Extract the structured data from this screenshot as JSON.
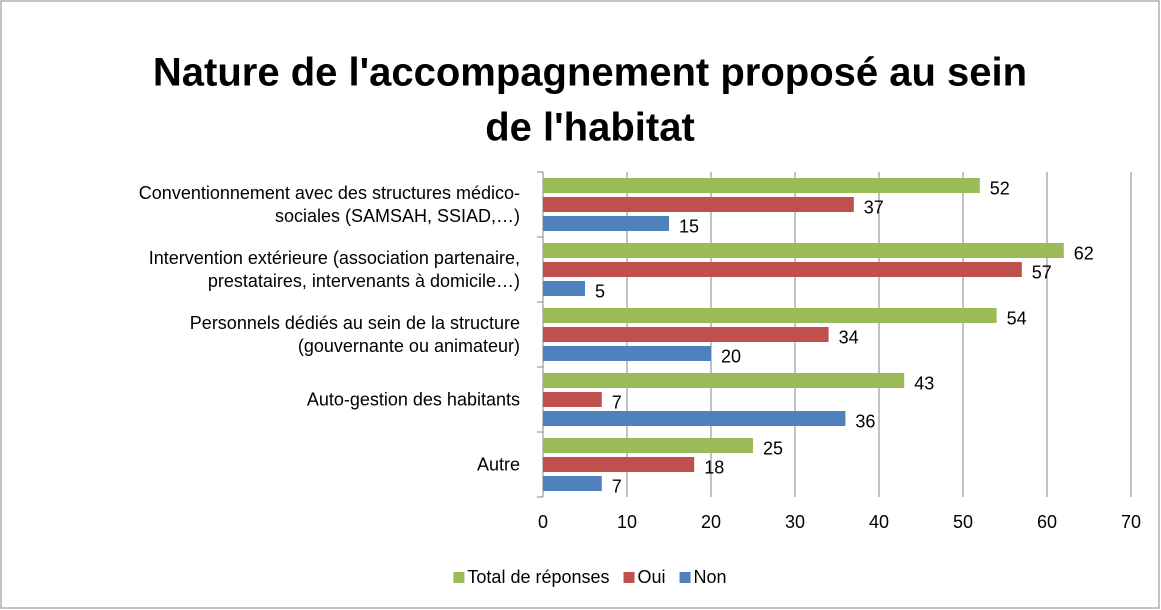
{
  "chart_data": {
    "type": "hbar",
    "title": [
      "Nature de l'accompagnement proposé au sein",
      "de l'habitat"
    ],
    "categories": [
      "Conventionnement avec des structures médico-\nsociales (SAMSAH, SSIAD,…)",
      "Intervention extérieure  (association partenaire,\nprestataires, intervenants à domicile…)",
      "Personnels dédiés au sein de la structure\n(gouvernante ou animateur)",
      "Auto-gestion des habitants",
      "Autre"
    ],
    "series": [
      {
        "name": "Total de réponses",
        "color": "#9bbb59",
        "values": [
          52,
          62,
          54,
          43,
          25
        ]
      },
      {
        "name": "Oui",
        "color": "#c0504d",
        "values": [
          37,
          57,
          34,
          7,
          18
        ]
      },
      {
        "name": "Non",
        "color": "#4f81bd",
        "values": [
          15,
          5,
          20,
          36,
          7
        ]
      }
    ],
    "xlim": [
      0,
      70
    ],
    "xticks": [
      0,
      10,
      20,
      30,
      40,
      50,
      60,
      70
    ],
    "grid": true,
    "legend": "bottom"
  }
}
